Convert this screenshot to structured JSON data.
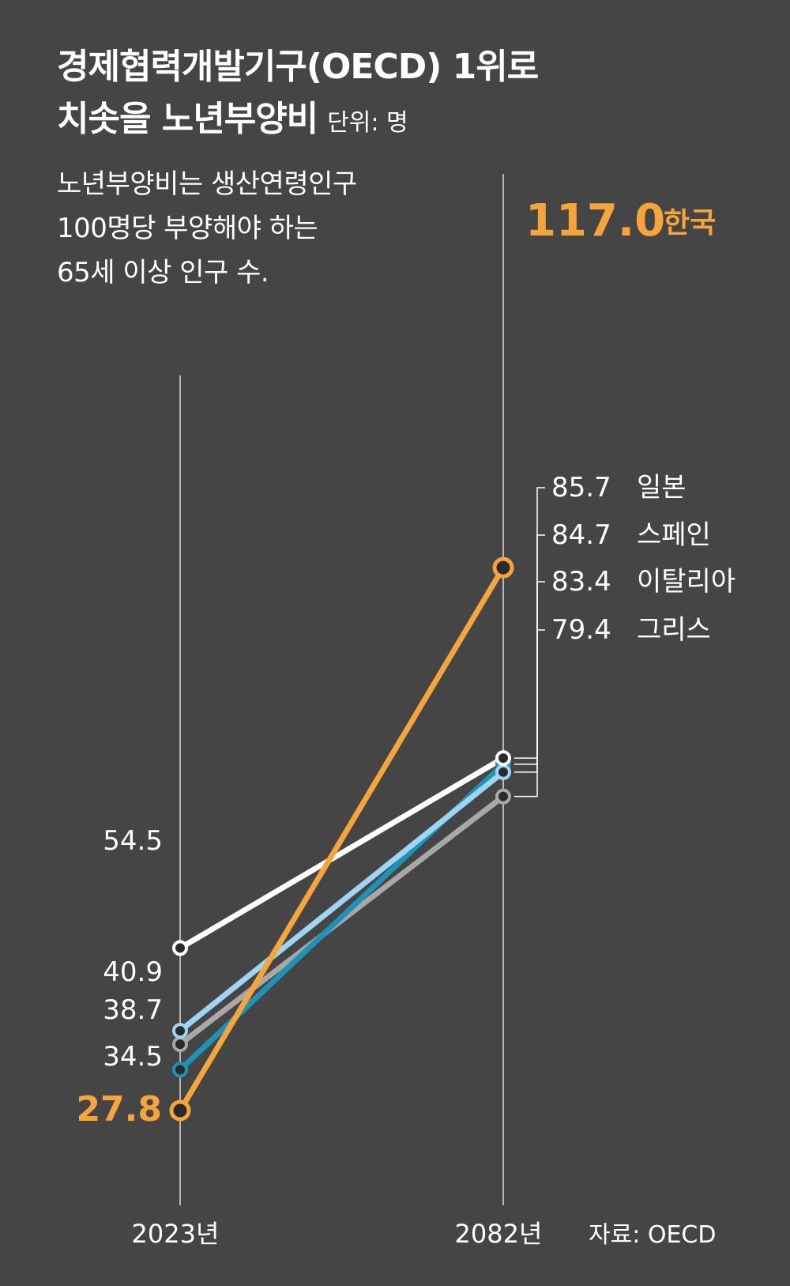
{
  "title": {
    "line1": "경제협력개발기구(OECD) 1위로",
    "line2": "치솟을 노년부양비",
    "unit": "단위: 명"
  },
  "description": [
    "노년부양비는 생산연령인구",
    "100명당 부양해야 하는",
    "65세 이상 인구 수."
  ],
  "source": "자료: OECD",
  "chart_data": {
    "type": "line",
    "x": [
      "2023년",
      "2082년"
    ],
    "series": [
      {
        "name": "일본",
        "values": [
          54.5,
          85.7
        ],
        "color": "#ffffff",
        "label": "85.7",
        "start_label": "54.5"
      },
      {
        "name": "이탈리아",
        "values": [
          40.9,
          83.4
        ],
        "color": "#9dd5f2",
        "label": "83.4",
        "start_label": "40.9"
      },
      {
        "name": "그리스",
        "values": [
          38.7,
          79.4
        ],
        "color": "#a8a8a8",
        "label": "79.4",
        "start_label": "38.7"
      },
      {
        "name": "스페인",
        "values": [
          34.5,
          84.7
        ],
        "color": "#1e93b6",
        "label": "84.7",
        "start_label": "34.5"
      },
      {
        "name": "한국",
        "values": [
          27.8,
          117.0
        ],
        "color": "#f5a53c",
        "label": "117.0",
        "start_label": "27.8"
      }
    ],
    "grid": false,
    "legend": "none"
  }
}
